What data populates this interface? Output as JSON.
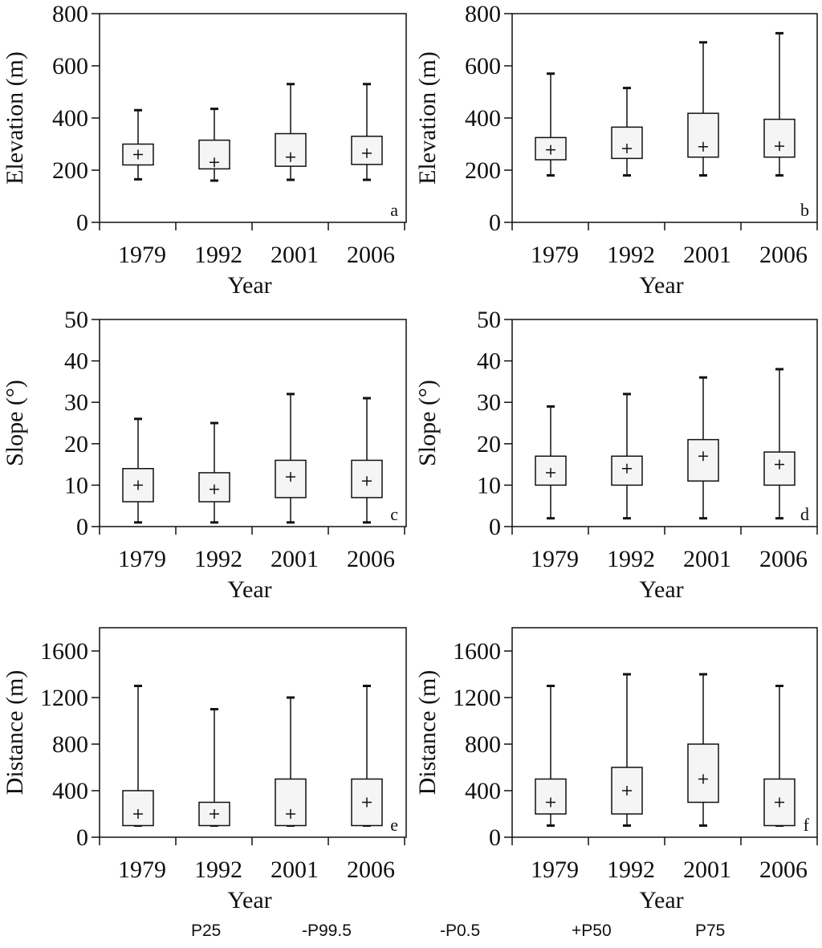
{
  "chart_data": [
    {
      "panel": "a",
      "type": "box",
      "xlabel": "Year",
      "ylabel": "Elevation (m)",
      "ylim": [
        0,
        800
      ],
      "yticks": [
        0,
        200,
        400,
        600,
        800
      ],
      "categories": [
        "1979",
        "1992",
        "2001",
        "2006"
      ],
      "boxes": [
        {
          "p0_5": 165,
          "p25": 220,
          "p50": 260,
          "p75": 300,
          "p99_5": 430
        },
        {
          "p0_5": 160,
          "p25": 205,
          "p50": 230,
          "p75": 315,
          "p99_5": 435
        },
        {
          "p0_5": 163,
          "p25": 215,
          "p50": 250,
          "p75": 340,
          "p99_5": 530
        },
        {
          "p0_5": 163,
          "p25": 222,
          "p50": 265,
          "p75": 330,
          "p99_5": 530
        }
      ]
    },
    {
      "panel": "b",
      "type": "box",
      "xlabel": "Year",
      "ylabel": "Elevation (m)",
      "ylim": [
        0,
        800
      ],
      "yticks": [
        0,
        200,
        400,
        600,
        800
      ],
      "categories": [
        "1979",
        "1992",
        "2001",
        "2006"
      ],
      "boxes": [
        {
          "p0_5": 180,
          "p25": 240,
          "p50": 278,
          "p75": 325,
          "p99_5": 570
        },
        {
          "p0_5": 180,
          "p25": 245,
          "p50": 283,
          "p75": 365,
          "p99_5": 515
        },
        {
          "p0_5": 180,
          "p25": 250,
          "p50": 290,
          "p75": 418,
          "p99_5": 690
        },
        {
          "p0_5": 180,
          "p25": 250,
          "p50": 292,
          "p75": 395,
          "p99_5": 725
        }
      ]
    },
    {
      "panel": "c",
      "type": "box",
      "xlabel": "Year",
      "ylabel": "Slope (°)",
      "ylim": [
        0,
        50
      ],
      "yticks": [
        0,
        10,
        20,
        30,
        40,
        50
      ],
      "categories": [
        "1979",
        "1992",
        "2001",
        "2006"
      ],
      "boxes": [
        {
          "p0_5": 1,
          "p25": 6,
          "p50": 10,
          "p75": 14,
          "p99_5": 26
        },
        {
          "p0_5": 1,
          "p25": 6,
          "p50": 9,
          "p75": 13,
          "p99_5": 25
        },
        {
          "p0_5": 1,
          "p25": 7,
          "p50": 12,
          "p75": 16,
          "p99_5": 32
        },
        {
          "p0_5": 1,
          "p25": 7,
          "p50": 11,
          "p75": 16,
          "p99_5": 31
        }
      ]
    },
    {
      "panel": "d",
      "type": "box",
      "xlabel": "Year",
      "ylabel": "Slope (°)",
      "ylim": [
        0,
        50
      ],
      "yticks": [
        0,
        10,
        20,
        30,
        40,
        50
      ],
      "categories": [
        "1979",
        "1992",
        "2001",
        "2006"
      ],
      "boxes": [
        {
          "p0_5": 2,
          "p25": 10,
          "p50": 13,
          "p75": 17,
          "p99_5": 29
        },
        {
          "p0_5": 2,
          "p25": 10,
          "p50": 14,
          "p75": 17,
          "p99_5": 32
        },
        {
          "p0_5": 2,
          "p25": 11,
          "p50": 17,
          "p75": 21,
          "p99_5": 36
        },
        {
          "p0_5": 2,
          "p25": 10,
          "p50": 15,
          "p75": 18,
          "p99_5": 38
        }
      ]
    },
    {
      "panel": "e",
      "type": "box",
      "xlabel": "Year",
      "ylabel": "Distance (m)",
      "ylim": [
        0,
        1800
      ],
      "yticks": [
        0,
        400,
        800,
        1200,
        1600
      ],
      "categories": [
        "1979",
        "1992",
        "2001",
        "2006"
      ],
      "boxes": [
        {
          "p0_5": 100,
          "p25": 100,
          "p50": 200,
          "p75": 400,
          "p99_5": 1300
        },
        {
          "p0_5": 100,
          "p25": 100,
          "p50": 200,
          "p75": 300,
          "p99_5": 1100
        },
        {
          "p0_5": 100,
          "p25": 100,
          "p50": 200,
          "p75": 500,
          "p99_5": 1200
        },
        {
          "p0_5": 100,
          "p25": 100,
          "p50": 300,
          "p75": 500,
          "p99_5": 1300
        }
      ]
    },
    {
      "panel": "f",
      "type": "box",
      "xlabel": "Year",
      "ylabel": "Distance (m)",
      "ylim": [
        0,
        1800
      ],
      "yticks": [
        0,
        400,
        800,
        1200,
        1600
      ],
      "categories": [
        "1979",
        "1992",
        "2001",
        "2006"
      ],
      "boxes": [
        {
          "p0_5": 100,
          "p25": 200,
          "p50": 300,
          "p75": 500,
          "p99_5": 1300
        },
        {
          "p0_5": 100,
          "p25": 200,
          "p50": 400,
          "p75": 600,
          "p99_5": 1400
        },
        {
          "p0_5": 100,
          "p25": 300,
          "p50": 500,
          "p75": 800,
          "p99_5": 1400
        },
        {
          "p0_5": 100,
          "p25": 100,
          "p50": 300,
          "p75": 500,
          "p99_5": 1300
        }
      ]
    }
  ],
  "legend": {
    "p25": "P25",
    "p99_5": "-P99.5",
    "p0_5": "-P0.5",
    "p50": "+P50",
    "p75": "P75"
  }
}
